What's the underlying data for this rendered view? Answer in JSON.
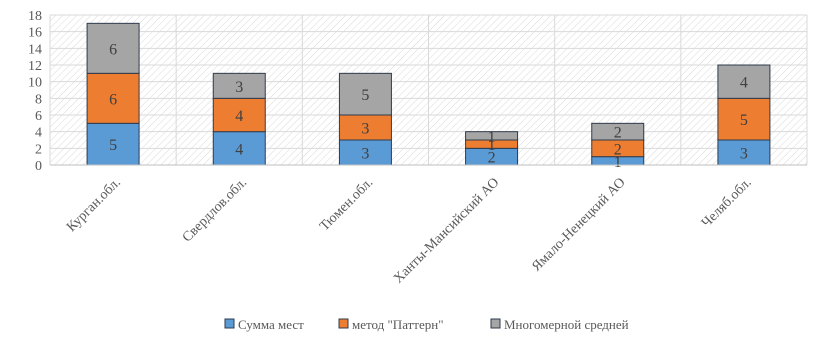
{
  "chart_data": {
    "type": "bar",
    "stacked": true,
    "categories": [
      "Курган.обл.",
      "Свердлов.обл.",
      "Тюмен.обл.",
      "Ханты-Мансийский АО",
      "Ямало-Ненецкий АО",
      "Челяб.обл."
    ],
    "series": [
      {
        "name": "Сумма мест",
        "values": [
          5,
          4,
          3,
          2,
          1,
          3
        ],
        "color": "#5B9BD5"
      },
      {
        "name": "метод \"Паттерн\"",
        "values": [
          6,
          4,
          3,
          1,
          2,
          5
        ],
        "color": "#ED7D31"
      },
      {
        "name": "Многомерной средней",
        "values": [
          6,
          3,
          5,
          1,
          2,
          4
        ],
        "color": "#A5A5A5"
      }
    ],
    "ylim": [
      0,
      18
    ],
    "yticks": [
      0,
      2,
      4,
      6,
      8,
      10,
      12,
      14,
      16,
      18
    ],
    "grid": true,
    "gridPattern": "hatched",
    "legend": "bottom"
  }
}
